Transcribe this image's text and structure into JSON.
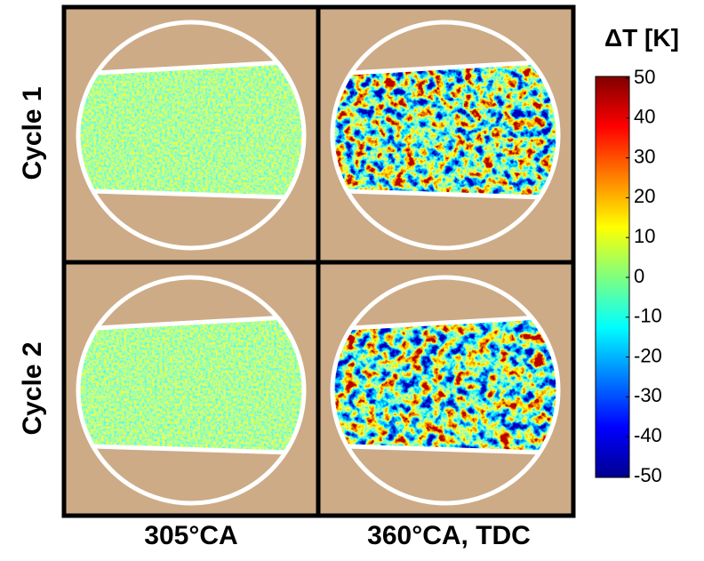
{
  "rows": [
    "Cycle 1",
    "Cycle 2"
  ],
  "columns": [
    "305°CA",
    "360°CA, TDC"
  ],
  "colorbar": {
    "title": "ΔT [K]",
    "lim": [
      -50,
      50
    ],
    "ticks": [
      50,
      40,
      30,
      20,
      10,
      0,
      -10,
      -20,
      -30,
      -40,
      -50
    ]
  }
}
